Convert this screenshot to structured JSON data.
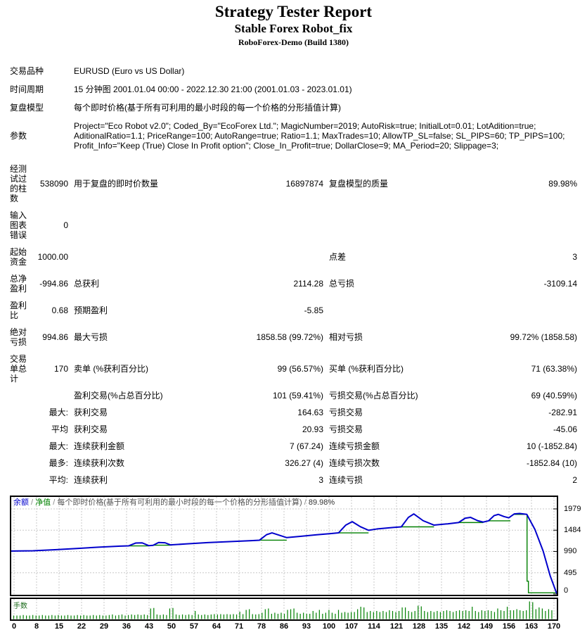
{
  "report": {
    "title": "Strategy Tester Report",
    "subtitle": "Stable Forex Robot_fix",
    "server": "RoboForex-Demo (Build 1380)"
  },
  "info_rows": [
    {
      "label": "交易品种",
      "value": "EURUSD (Euro vs US Dollar)"
    },
    {
      "label": "时间周期",
      "value": "15 分钟图 2001.01.04 00:00 - 2022.12.30 21:00 (2001.01.03 - 2023.01.01)"
    },
    {
      "label": "复盘模型",
      "value": "每个即时价格(基于所有可利用的最小时段的每一个价格的分形插值计算)"
    },
    {
      "label": "参数",
      "value": "Project=\"Eco Robot v2.0\"; Coded_By=\"EcoForex Ltd.\"; MagicNumber=2019; AutoRisk=true; InitialLot=0.01; LotAdition=true; AditionalRatio=1.1; PriceRange=100; AutoRange=true; Ratio=1.1; MaxTrades=10; AllowTP_SL=false; SL_PIPS=60; TP_PIPS=100; Profit_Info=\"Keep (True) Close In Profit option\"; Close_In_Profit=true; DollarClose=9; MA_Period=20; Slippage=3;"
    }
  ],
  "stat_rows": [
    {
      "c1": "经测试过的柱数",
      "c2": "538090",
      "c3": "用于复盘的即时价数量",
      "c4": "16897874",
      "c5": "复盘模型的质量",
      "c6": "89.98%"
    },
    {
      "c1": "输入图表错误",
      "c2": "0",
      "c3": "",
      "c4": "",
      "c5": "",
      "c6": ""
    },
    {
      "c1": "起始资金",
      "c2": "1000.00",
      "c3": "",
      "c4": "",
      "c5": "点差",
      "c6": "3"
    },
    {
      "c1": "总净盈利",
      "c2": "-994.86",
      "c3": "总获利",
      "c4": "2114.28",
      "c5": "总亏损",
      "c6": "-3109.14"
    },
    {
      "c1": "盈利比",
      "c2": "0.68",
      "c3": "预期盈利",
      "c4": "-5.85",
      "c5": "",
      "c6": ""
    },
    {
      "c1": "绝对亏损",
      "c2": "994.86",
      "c3": "最大亏损",
      "c4": "1858.58 (99.72%)",
      "c5": "相对亏损",
      "c6": "99.72% (1858.58)"
    },
    {
      "c1": "交易单总计",
      "c2": "170",
      "c3": "卖单 (%获利百分比)",
      "c4": "99 (56.57%)",
      "c5": "买单 (%获利百分比)",
      "c6": "71 (63.38%)"
    },
    {
      "c1": "",
      "c2": "",
      "c3": "盈利交易(%占总百分比)",
      "c4": "101 (59.41%)",
      "c5": "亏损交易(%占总百分比)",
      "c6": "69 (40.59%)"
    },
    {
      "c1": "",
      "c2": "最大:",
      "c3": "获利交易",
      "c4": "164.63",
      "c5": "亏损交易",
      "c6": "-282.91"
    },
    {
      "c1": "",
      "c2": "平均",
      "c3": "获利交易",
      "c4": "20.93",
      "c5": "亏损交易",
      "c6": "-45.06"
    },
    {
      "c1": "",
      "c2": "最大:",
      "c3": "连续获利金额",
      "c4": "7 (67.24)",
      "c5": "连续亏损金额",
      "c6": "10 (-1852.84)"
    },
    {
      "c1": "",
      "c2": "最多:",
      "c3": "连续获利次数",
      "c4": "326.27 (4)",
      "c5": "连续亏损次数",
      "c6": "-1852.84 (10)"
    },
    {
      "c1": "",
      "c2": "平均:",
      "c3": "连续获利",
      "c4": "3",
      "c5": "连续亏损",
      "c6": "2"
    }
  ],
  "chart_data": {
    "type": "line",
    "legend": {
      "balance_label": "余额",
      "equity_label": "净值",
      "separator": " / ",
      "model_label": "每个即时价格(基于所有可利用的最小时段的每一个价格的分形插值计算)",
      "quality": "89.98%"
    },
    "colors": {
      "balance": "#0000cc",
      "equity": "#008000",
      "grid": "#c8c8c8",
      "bars": "#008000"
    },
    "ylim": [
      0,
      2300
    ],
    "y_ticks": [
      1979,
      1484,
      990,
      495,
      0
    ],
    "x_ticks": [
      0,
      8,
      15,
      22,
      29,
      36,
      43,
      50,
      57,
      64,
      71,
      78,
      86,
      93,
      100,
      107,
      114,
      121,
      128,
      135,
      142,
      149,
      156,
      163,
      170
    ],
    "balance_points": [
      [
        0.0,
        1000
      ],
      [
        0.04,
        1005
      ],
      [
        0.08,
        1030
      ],
      [
        0.12,
        1060
      ],
      [
        0.16,
        1090
      ],
      [
        0.2,
        1115
      ],
      [
        0.215,
        1120
      ],
      [
        0.228,
        1185
      ],
      [
        0.24,
        1190
      ],
      [
        0.252,
        1125
      ],
      [
        0.26,
        1132
      ],
      [
        0.27,
        1198
      ],
      [
        0.282,
        1192
      ],
      [
        0.292,
        1142
      ],
      [
        0.32,
        1165
      ],
      [
        0.36,
        1195
      ],
      [
        0.4,
        1218
      ],
      [
        0.44,
        1240
      ],
      [
        0.455,
        1252
      ],
      [
        0.468,
        1380
      ],
      [
        0.478,
        1422
      ],
      [
        0.492,
        1365
      ],
      [
        0.505,
        1312
      ],
      [
        0.53,
        1342
      ],
      [
        0.56,
        1378
      ],
      [
        0.585,
        1405
      ],
      [
        0.6,
        1422
      ],
      [
        0.613,
        1600
      ],
      [
        0.625,
        1682
      ],
      [
        0.64,
        1565
      ],
      [
        0.655,
        1482
      ],
      [
        0.67,
        1512
      ],
      [
        0.7,
        1548
      ],
      [
        0.715,
        1562
      ],
      [
        0.728,
        1782
      ],
      [
        0.738,
        1862
      ],
      [
        0.755,
        1705
      ],
      [
        0.775,
        1602
      ],
      [
        0.8,
        1632
      ],
      [
        0.82,
        1662
      ],
      [
        0.832,
        1762
      ],
      [
        0.842,
        1782
      ],
      [
        0.855,
        1705
      ],
      [
        0.865,
        1672
      ],
      [
        0.875,
        1702
      ],
      [
        0.885,
        1822
      ],
      [
        0.893,
        1852
      ],
      [
        0.903,
        1802
      ],
      [
        0.912,
        1772
      ],
      [
        0.922,
        1862
      ],
      [
        0.932,
        1872
      ],
      [
        0.945,
        1852
      ],
      [
        0.96,
        1500
      ],
      [
        0.975,
        1000
      ],
      [
        0.988,
        420
      ],
      [
        1.0,
        10
      ]
    ],
    "equity_segments": [
      [
        0.215,
        0.252,
        1120
      ],
      [
        0.26,
        0.292,
        1135
      ],
      [
        0.455,
        0.505,
        1252
      ],
      [
        0.6,
        0.655,
        1422
      ],
      [
        0.715,
        0.775,
        1562
      ],
      [
        0.82,
        0.865,
        1662
      ],
      [
        0.875,
        0.915,
        1702
      ],
      [
        0.922,
        0.945,
        1852
      ]
    ],
    "equity_end": [
      [
        0.9455,
        1852
      ],
      [
        0.9455,
        300
      ],
      [
        0.948,
        300
      ],
      [
        0.948,
        30
      ],
      [
        0.998,
        30
      ]
    ],
    "lots_label": "手数",
    "lots_bars": [
      2,
      2,
      2,
      2.3,
      2,
      2,
      2.3,
      2,
      2,
      2.3,
      2,
      2,
      2.3,
      2,
      2.3,
      2,
      2,
      2.3,
      2,
      2,
      2.3,
      2,
      2.3,
      2,
      2,
      2.3,
      2,
      2.3,
      2,
      2,
      2.3,
      2.6,
      2,
      2.3,
      2.6,
      2,
      2.3,
      2.6,
      2.3,
      2.6,
      2.3,
      2.6,
      2.3,
      6,
      6.3,
      2.6,
      2.3,
      2.6,
      2.3,
      6,
      6.3,
      2.6,
      2.3,
      2.6,
      2.3,
      2.6,
      2.3,
      4.6,
      2.6,
      2.3,
      2.6,
      2.3,
      2.6,
      2.8,
      2.6,
      2.8,
      2.6,
      2.8,
      2.6,
      2.8,
      2.6,
      4.2,
      2.8,
      5.2,
      5.6,
      2.8,
      2.6,
      2.8,
      3.6,
      5.6,
      6,
      3,
      3.6,
      3,
      3.6,
      3,
      5.2,
      5.6,
      6,
      3.6,
      3,
      3.6,
      3,
      3,
      4.6,
      3.6,
      5.2,
      3,
      3.6,
      5.2,
      3.6,
      3,
      5.2,
      3.6,
      4,
      3.6,
      4,
      4,
      5.6,
      7,
      6.6,
      4,
      4.6,
      4,
      4.6,
      4,
      4.6,
      4,
      5,
      4.6,
      4,
      4.6,
      6.6,
      6.6,
      4.6,
      4,
      4.6,
      7.6,
      7.2,
      4.6,
      4,
      4.6,
      4,
      4.6,
      4,
      4.6,
      5,
      4.6,
      4,
      4.6,
      5,
      4.6,
      5,
      4.6,
      7,
      4.6,
      4,
      5,
      4.6,
      5,
      4.6,
      4,
      6,
      5,
      4.6,
      7,
      5,
      5,
      5.6,
      5,
      4.6,
      5,
      10,
      9.6,
      5.6,
      6.6,
      6,
      4.6,
      5.6,
      5
    ]
  }
}
